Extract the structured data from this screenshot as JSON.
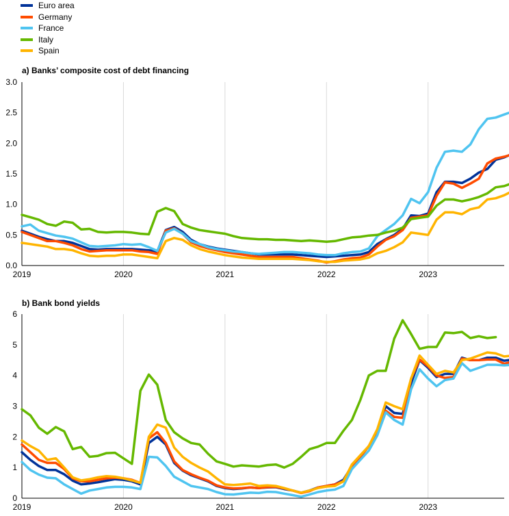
{
  "legend": [
    {
      "name": "Euro area",
      "color": "#003299"
    },
    {
      "name": "Germany",
      "color": "#FF4B00"
    },
    {
      "name": "France",
      "color": "#4FC4F0"
    },
    {
      "name": "Italy",
      "color": "#65B800"
    },
    {
      "name": "Spain",
      "color": "#FFB400"
    }
  ],
  "chart_data": [
    {
      "type": "line",
      "title": "a) Banks’ composite cost of debt financing",
      "xlabel": "",
      "ylabel": "",
      "ylim": [
        0,
        3.0
      ],
      "yticks": [
        "0.0",
        "0.5",
        "1.0",
        "1.5",
        "2.0",
        "2.5",
        "3.0"
      ],
      "xlim": [
        2019.0,
        2023.75
      ],
      "xticks": [
        "2019",
        "2020",
        "2021",
        "2022",
        "2023"
      ],
      "grid": "vertical at year ticks",
      "x_start": "2019-01",
      "series": [
        {
          "name": "Euro area",
          "color": "#003299",
          "values": [
            0.57,
            0.52,
            0.47,
            0.43,
            0.4,
            0.4,
            0.37,
            0.32,
            0.27,
            0.26,
            0.27,
            0.27,
            0.27,
            0.27,
            0.26,
            0.25,
            0.23,
            0.58,
            0.63,
            0.55,
            0.42,
            0.35,
            0.31,
            0.28,
            0.26,
            0.24,
            0.22,
            0.2,
            0.18,
            0.18,
            0.18,
            0.18,
            0.18,
            0.17,
            0.16,
            0.15,
            0.14,
            0.15,
            0.16,
            0.17,
            0.18,
            0.22,
            0.35,
            0.43,
            0.5,
            0.6,
            0.82,
            0.81,
            0.85,
            1.2,
            1.37,
            1.37,
            1.35,
            1.42,
            1.52,
            1.58,
            1.73,
            1.77,
            1.83,
            1.91,
            2.01
          ]
        },
        {
          "name": "Germany",
          "color": "#FF4B00",
          "values": [
            0.55,
            0.5,
            0.45,
            0.4,
            0.4,
            0.37,
            0.33,
            0.27,
            0.23,
            0.24,
            0.25,
            0.25,
            0.25,
            0.25,
            0.23,
            0.22,
            0.19,
            0.57,
            0.61,
            0.52,
            0.38,
            0.32,
            0.28,
            0.25,
            0.22,
            0.2,
            0.18,
            0.16,
            0.14,
            0.14,
            0.14,
            0.14,
            0.14,
            0.12,
            0.1,
            0.08,
            0.05,
            0.07,
            0.1,
            0.12,
            0.13,
            0.18,
            0.31,
            0.42,
            0.48,
            0.58,
            0.78,
            0.8,
            0.82,
            1.14,
            1.36,
            1.34,
            1.27,
            1.34,
            1.42,
            1.67,
            1.75,
            1.78,
            1.82,
            1.88,
            1.94
          ]
        },
        {
          "name": "France",
          "color": "#4FC4F0",
          "values": [
            0.64,
            0.67,
            0.57,
            0.53,
            0.49,
            0.47,
            0.44,
            0.38,
            0.32,
            0.31,
            0.32,
            0.33,
            0.35,
            0.34,
            0.35,
            0.3,
            0.24,
            0.54,
            0.6,
            0.52,
            0.4,
            0.35,
            0.3,
            0.27,
            0.25,
            0.23,
            0.22,
            0.2,
            0.19,
            0.2,
            0.21,
            0.22,
            0.22,
            0.21,
            0.2,
            0.18,
            0.17,
            0.17,
            0.2,
            0.22,
            0.23,
            0.28,
            0.48,
            0.58,
            0.68,
            0.82,
            1.09,
            1.02,
            1.2,
            1.6,
            1.86,
            1.88,
            1.86,
            1.98,
            2.23,
            2.4,
            2.42,
            2.47,
            2.52,
            2.59,
            2.7
          ]
        },
        {
          "name": "Italy",
          "color": "#65B800",
          "values": [
            0.83,
            0.79,
            0.75,
            0.68,
            0.65,
            0.72,
            0.7,
            0.59,
            0.6,
            0.55,
            0.54,
            0.55,
            0.55,
            0.54,
            0.52,
            0.51,
            0.88,
            0.94,
            0.89,
            0.68,
            0.62,
            0.58,
            0.56,
            0.54,
            0.52,
            0.48,
            0.45,
            0.44,
            0.43,
            0.43,
            0.42,
            0.42,
            0.41,
            0.4,
            0.41,
            0.4,
            0.39,
            0.4,
            0.43,
            0.46,
            0.47,
            0.49,
            0.5,
            0.54,
            0.57,
            0.62,
            0.76,
            0.78,
            0.8,
            0.98,
            1.08,
            1.08,
            1.05,
            1.08,
            1.12,
            1.18,
            1.28,
            1.3,
            1.35,
            1.4,
            1.45
          ]
        },
        {
          "name": "Spain",
          "color": "#FFB400",
          "values": [
            0.37,
            0.35,
            0.33,
            0.31,
            0.27,
            0.27,
            0.25,
            0.2,
            0.16,
            0.15,
            0.16,
            0.16,
            0.18,
            0.18,
            0.16,
            0.14,
            0.12,
            0.4,
            0.45,
            0.42,
            0.33,
            0.27,
            0.23,
            0.2,
            0.17,
            0.15,
            0.13,
            0.12,
            0.11,
            0.11,
            0.11,
            0.11,
            0.11,
            0.1,
            0.09,
            0.07,
            0.06,
            0.06,
            0.08,
            0.09,
            0.1,
            0.13,
            0.2,
            0.24,
            0.3,
            0.38,
            0.54,
            0.52,
            0.5,
            0.75,
            0.87,
            0.87,
            0.84,
            0.92,
            0.95,
            1.08,
            1.1,
            1.15,
            1.22,
            1.27,
            1.3
          ]
        }
      ]
    },
    {
      "type": "line",
      "title": "b) Bank bond yields",
      "xlabel": "",
      "ylabel": "",
      "ylim": [
        0,
        6
      ],
      "yticks": [
        "0",
        "1",
        "2",
        "3",
        "4",
        "5",
        "6"
      ],
      "xlim": [
        2019.0,
        2023.75
      ],
      "xticks": [
        "2019",
        "2020",
        "2021",
        "2022",
        "2023"
      ],
      "grid": "vertical at year ticks",
      "x_start": "2019-01",
      "series": [
        {
          "name": "Euro area",
          "color": "#003299",
          "values": [
            1.5,
            1.25,
            1.05,
            0.92,
            0.92,
            0.78,
            0.57,
            0.45,
            0.48,
            0.52,
            0.57,
            0.62,
            0.6,
            0.55,
            0.45,
            1.8,
            2.0,
            1.75,
            1.15,
            0.9,
            0.75,
            0.65,
            0.55,
            0.4,
            0.33,
            0.3,
            0.32,
            0.35,
            0.33,
            0.35,
            0.36,
            0.3,
            0.25,
            0.18,
            0.25,
            0.35,
            0.4,
            0.45,
            0.6,
            1.05,
            1.35,
            1.7,
            2.2,
            3.0,
            2.78,
            2.75,
            3.75,
            4.5,
            4.25,
            3.95,
            4.05,
            4.05,
            4.58,
            4.5,
            4.5,
            4.58,
            4.58,
            4.48,
            4.52
          ]
        },
        {
          "name": "Germany",
          "color": "#FF4B00",
          "values": [
            1.75,
            1.5,
            1.25,
            1.15,
            1.15,
            0.95,
            0.65,
            0.55,
            0.55,
            0.6,
            0.65,
            0.67,
            0.65,
            0.6,
            0.5,
            1.95,
            2.15,
            1.8,
            1.2,
            0.92,
            0.78,
            0.67,
            0.57,
            0.42,
            0.35,
            0.32,
            0.33,
            0.35,
            0.33,
            0.36,
            0.37,
            0.32,
            0.25,
            0.17,
            0.23,
            0.35,
            0.4,
            0.45,
            0.55,
            1.0,
            1.35,
            1.7,
            2.2,
            2.85,
            2.65,
            2.62,
            3.9,
            4.52,
            4.3,
            4.0,
            3.92,
            3.95,
            4.55,
            4.5,
            4.5,
            4.52,
            4.52,
            4.38,
            4.45
          ]
        },
        {
          "name": "France",
          "color": "#4FC4F0",
          "values": [
            1.18,
            0.92,
            0.77,
            0.67,
            0.65,
            0.45,
            0.3,
            0.15,
            0.25,
            0.3,
            0.35,
            0.37,
            0.37,
            0.35,
            0.3,
            1.35,
            1.33,
            1.05,
            0.7,
            0.55,
            0.4,
            0.35,
            0.3,
            0.2,
            0.13,
            0.12,
            0.15,
            0.18,
            0.17,
            0.21,
            0.2,
            0.15,
            0.1,
            0.05,
            0.12,
            0.2,
            0.25,
            0.28,
            0.4,
            0.95,
            1.25,
            1.55,
            2.05,
            2.8,
            2.55,
            2.4,
            3.55,
            4.2,
            3.9,
            3.65,
            3.85,
            3.9,
            4.4,
            4.15,
            4.25,
            4.35,
            4.35,
            4.33,
            4.35
          ]
        },
        {
          "name": "Italy",
          "color": "#65B800",
          "values": [
            2.9,
            2.7,
            2.3,
            2.1,
            2.32,
            2.18,
            1.6,
            1.67,
            1.35,
            1.38,
            1.47,
            1.48,
            1.3,
            1.12,
            3.5,
            4.03,
            3.7,
            2.55,
            2.15,
            1.95,
            1.8,
            1.75,
            1.45,
            1.2,
            1.12,
            1.03,
            1.07,
            1.05,
            1.03,
            1.08,
            1.1,
            1.0,
            1.12,
            1.35,
            1.6,
            1.68,
            1.8,
            1.8,
            2.2,
            2.55,
            3.2,
            4.0,
            4.15,
            4.15,
            5.2,
            5.8,
            5.35,
            4.87,
            4.93,
            4.93,
            5.4,
            5.38,
            5.42,
            5.22,
            5.28,
            5.22,
            5.25
          ]
        },
        {
          "name": "Spain",
          "color": "#FFB400",
          "values": [
            1.88,
            1.7,
            1.55,
            1.25,
            1.3,
            1.0,
            0.68,
            0.58,
            0.62,
            0.68,
            0.72,
            0.7,
            0.65,
            0.58,
            0.5,
            2.0,
            2.4,
            2.3,
            1.65,
            1.35,
            1.15,
            1.0,
            0.87,
            0.65,
            0.45,
            0.43,
            0.45,
            0.48,
            0.4,
            0.42,
            0.4,
            0.33,
            0.25,
            0.18,
            0.25,
            0.33,
            0.38,
            0.4,
            0.55,
            1.1,
            1.4,
            1.7,
            2.25,
            3.12,
            3.0,
            2.9,
            3.9,
            4.65,
            4.35,
            4.05,
            4.15,
            4.1,
            4.5,
            4.55,
            4.65,
            4.75,
            4.72,
            4.62,
            4.65
          ]
        }
      ]
    }
  ]
}
